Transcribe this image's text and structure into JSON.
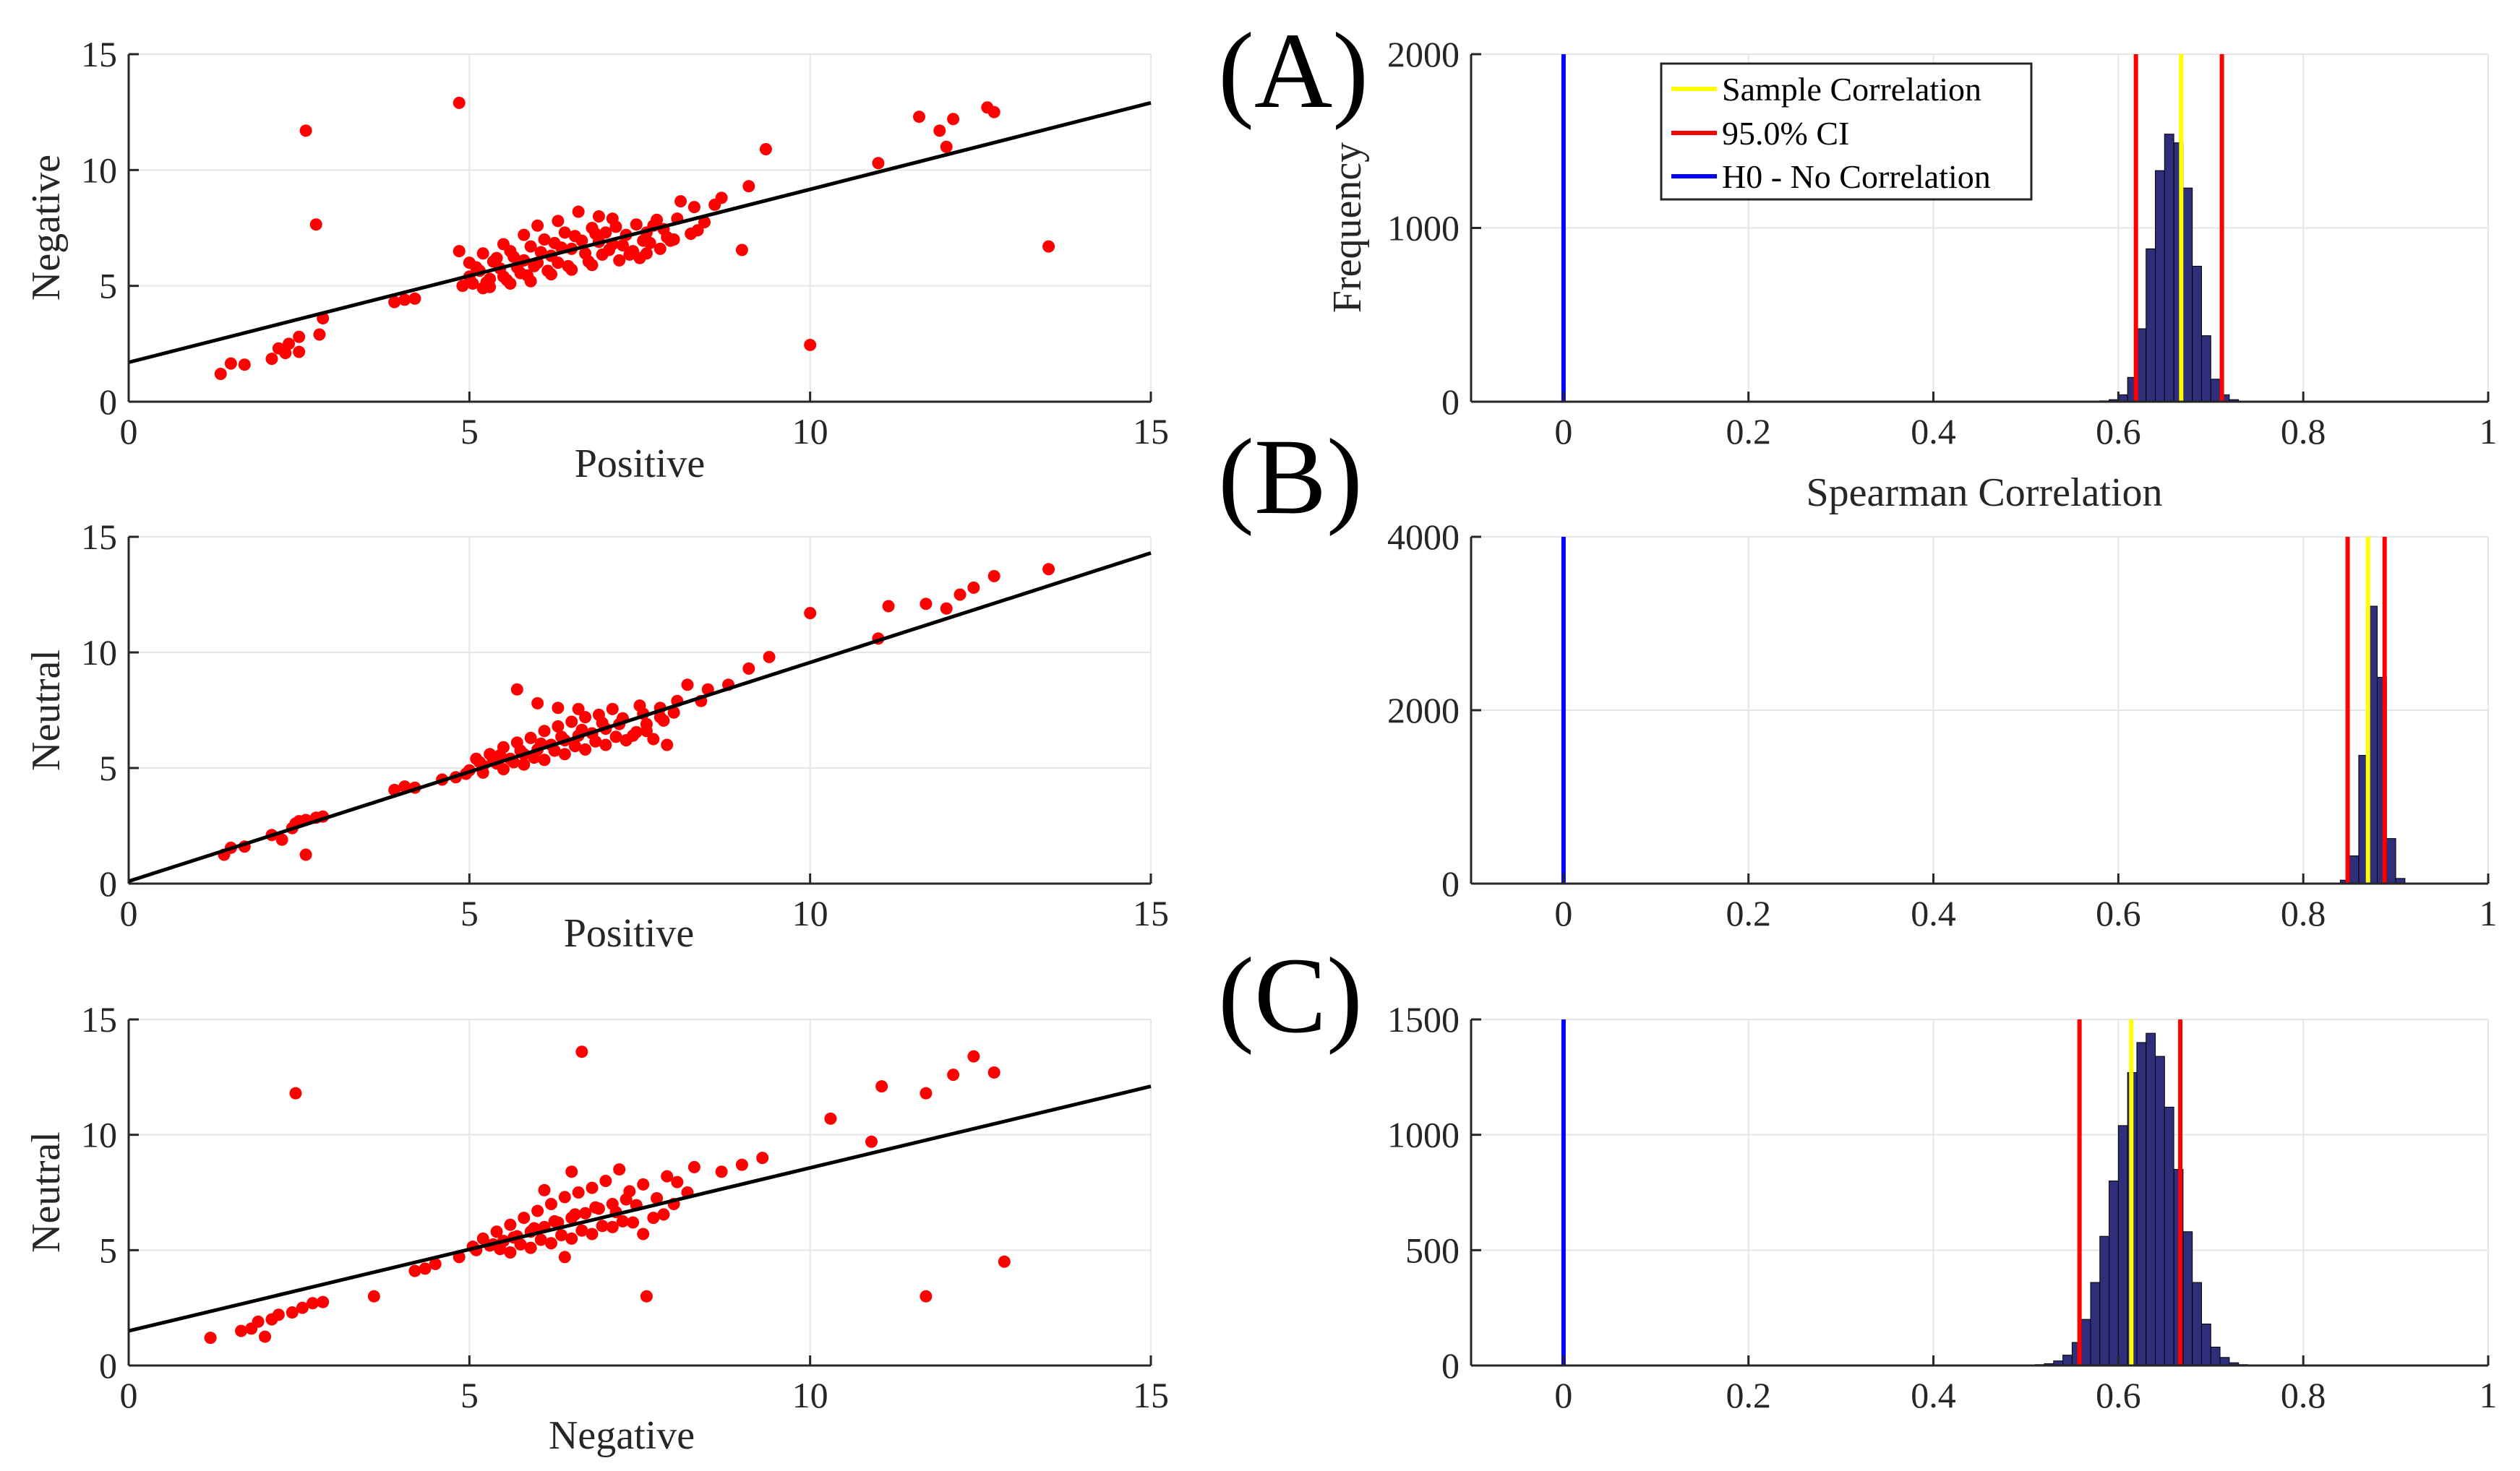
{
  "chart_data": [
    {
      "id": "scatter1",
      "type": "scatter",
      "xlabel": "Positive",
      "ylabel": "Negative",
      "xlim": [
        0,
        15
      ],
      "ylim": [
        0,
        15
      ],
      "xticks": [
        "0",
        "5",
        "10",
        "15"
      ],
      "yticks": [
        "0",
        "5",
        "10",
        "15"
      ],
      "fit_line": [
        [
          0,
          1.7
        ],
        [
          15,
          12.9
        ]
      ],
      "marker_color": "#ff0000",
      "points": [
        [
          1.35,
          1.2
        ],
        [
          1.5,
          1.65
        ],
        [
          1.7,
          1.6
        ],
        [
          2.1,
          1.85
        ],
        [
          2.2,
          2.3
        ],
        [
          2.35,
          2.5
        ],
        [
          2.5,
          2.8
        ],
        [
          2.3,
          2.1
        ],
        [
          2.5,
          2.15
        ],
        [
          2.8,
          2.9
        ],
        [
          2.85,
          3.6
        ],
        [
          2.6,
          11.7
        ],
        [
          2.75,
          7.65
        ],
        [
          3.9,
          4.3
        ],
        [
          4.05,
          4.4
        ],
        [
          4.2,
          4.45
        ],
        [
          4.85,
          12.9
        ],
        [
          10.0,
          2.45
        ],
        [
          13.5,
          6.7
        ],
        [
          9.35,
          10.9
        ],
        [
          11.0,
          10.3
        ],
        [
          11.6,
          12.3
        ],
        [
          11.9,
          11.7
        ],
        [
          12.1,
          12.2
        ],
        [
          12.6,
          12.7
        ],
        [
          12.7,
          12.5
        ],
        [
          12.0,
          11.0
        ],
        [
          9.0,
          6.55
        ],
        [
          8.6,
          8.5
        ],
        [
          8.3,
          8.4
        ],
        [
          8.1,
          8.65
        ],
        [
          8.7,
          8.8
        ],
        [
          9.1,
          9.3
        ],
        [
          8.0,
          7.0
        ],
        [
          8.35,
          7.4
        ],
        [
          7.8,
          6.6
        ],
        [
          7.6,
          6.4
        ],
        [
          7.5,
          6.2
        ],
        [
          7.1,
          7.9
        ],
        [
          6.6,
          8.2
        ],
        [
          6.9,
          8.0
        ],
        [
          7.7,
          7.6
        ],
        [
          4.9,
          5.0
        ],
        [
          4.85,
          6.5
        ],
        [
          5.0,
          5.4
        ],
        [
          5.2,
          4.9
        ],
        [
          5.3,
          5.3
        ],
        [
          5.5,
          5.4
        ],
        [
          5.7,
          5.8
        ],
        [
          5.8,
          6.1
        ],
        [
          6.0,
          6.0
        ],
        [
          6.2,
          6.3
        ],
        [
          6.3,
          6.0
        ],
        [
          6.5,
          6.6
        ],
        [
          6.7,
          6.4
        ],
        [
          6.9,
          6.9
        ],
        [
          7.1,
          6.8
        ],
        [
          7.3,
          7.2
        ],
        [
          5.1,
          5.8
        ],
        [
          5.4,
          6.2
        ],
        [
          5.6,
          6.5
        ],
        [
          5.9,
          6.7
        ],
        [
          6.1,
          7.0
        ],
        [
          6.4,
          7.3
        ],
        [
          6.8,
          7.5
        ],
        [
          7.0,
          7.3
        ],
        [
          5.3,
          4.95
        ],
        [
          5.6,
          5.1
        ],
        [
          5.9,
          5.2
        ],
        [
          6.2,
          5.5
        ],
        [
          6.5,
          5.7
        ],
        [
          6.8,
          5.9
        ],
        [
          7.2,
          6.1
        ],
        [
          7.4,
          6.5
        ],
        [
          5.0,
          6.0
        ],
        [
          5.2,
          6.4
        ],
        [
          5.5,
          6.8
        ],
        [
          5.8,
          7.2
        ],
        [
          6.0,
          7.6
        ],
        [
          6.3,
          7.8
        ],
        [
          7.6,
          7.3
        ],
        [
          7.9,
          7.1
        ],
        [
          8.05,
          7.9
        ],
        [
          5.05,
          5.1
        ],
        [
          5.45,
          5.75
        ],
        [
          5.75,
          5.55
        ],
        [
          6.05,
          6.45
        ],
        [
          6.35,
          6.65
        ],
        [
          6.65,
          6.95
        ],
        [
          6.95,
          6.35
        ],
        [
          7.25,
          6.75
        ],
        [
          7.55,
          6.95
        ],
        [
          7.85,
          7.45
        ],
        [
          5.15,
          5.65
        ],
        [
          5.35,
          6.05
        ],
        [
          5.65,
          6.25
        ],
        [
          5.95,
          5.85
        ],
        [
          6.25,
          6.85
        ],
        [
          6.55,
          7.15
        ],
        [
          6.85,
          7.25
        ],
        [
          7.15,
          7.55
        ],
        [
          7.45,
          7.65
        ],
        [
          7.75,
          7.85
        ],
        [
          5.25,
          5.15
        ],
        [
          5.55,
          5.25
        ],
        [
          5.85,
          5.45
        ],
        [
          6.15,
          5.65
        ],
        [
          6.45,
          5.85
        ],
        [
          6.75,
          6.05
        ],
        [
          7.05,
          6.55
        ],
        [
          7.35,
          6.35
        ],
        [
          7.65,
          6.85
        ],
        [
          7.95,
          6.95
        ],
        [
          8.25,
          7.25
        ],
        [
          8.45,
          7.75
        ]
      ]
    },
    {
      "id": "scatter2",
      "type": "scatter",
      "xlabel": "Positive",
      "ylabel": "Neutral",
      "xlim": [
        0,
        15
      ],
      "ylim": [
        0,
        15
      ],
      "xticks": [
        "0",
        "5",
        "10",
        "15"
      ],
      "yticks": [
        "0",
        "5",
        "10",
        "15"
      ],
      "fit_line": [
        [
          0,
          0.1
        ],
        [
          15,
          14.3
        ]
      ],
      "marker_color": "#ff0000",
      "points": [
        [
          1.4,
          1.25
        ],
        [
          1.5,
          1.55
        ],
        [
          1.7,
          1.6
        ],
        [
          2.1,
          2.1
        ],
        [
          2.25,
          1.9
        ],
        [
          2.4,
          2.4
        ],
        [
          2.45,
          2.6
        ],
        [
          2.5,
          2.7
        ],
        [
          2.6,
          2.75
        ],
        [
          2.75,
          2.85
        ],
        [
          2.85,
          2.9
        ],
        [
          2.6,
          1.25
        ],
        [
          3.9,
          4.05
        ],
        [
          4.05,
          4.2
        ],
        [
          4.2,
          4.15
        ],
        [
          4.6,
          4.5
        ],
        [
          5.7,
          8.4
        ],
        [
          10.0,
          11.7
        ],
        [
          11.0,
          10.6
        ],
        [
          11.15,
          12.0
        ],
        [
          11.7,
          12.1
        ],
        [
          12.0,
          11.9
        ],
        [
          12.2,
          12.5
        ],
        [
          12.4,
          12.8
        ],
        [
          12.7,
          13.3
        ],
        [
          13.5,
          13.6
        ],
        [
          9.1,
          9.3
        ],
        [
          8.8,
          8.6
        ],
        [
          9.4,
          9.8
        ],
        [
          8.5,
          8.4
        ],
        [
          8.2,
          8.6
        ],
        [
          8.0,
          7.4
        ],
        [
          7.8,
          7.2
        ],
        [
          7.6,
          6.6
        ],
        [
          7.4,
          6.4
        ],
        [
          7.9,
          6.0
        ],
        [
          4.8,
          4.6
        ],
        [
          5.0,
          4.9
        ],
        [
          5.2,
          5.1
        ],
        [
          5.4,
          5.2
        ],
        [
          5.6,
          5.4
        ],
        [
          5.8,
          5.6
        ],
        [
          6.0,
          5.8
        ],
        [
          6.2,
          6.0
        ],
        [
          6.4,
          6.2
        ],
        [
          6.6,
          6.4
        ],
        [
          6.8,
          6.5
        ],
        [
          7.0,
          6.7
        ],
        [
          7.2,
          6.9
        ],
        [
          5.1,
          5.4
        ],
        [
          5.3,
          5.6
        ],
        [
          5.5,
          5.9
        ],
        [
          5.7,
          6.1
        ],
        [
          5.9,
          6.3
        ],
        [
          6.1,
          6.6
        ],
        [
          6.3,
          6.8
        ],
        [
          6.5,
          7.0
        ],
        [
          6.7,
          7.2
        ],
        [
          6.9,
          7.3
        ],
        [
          5.2,
          4.8
        ],
        [
          5.5,
          4.95
        ],
        [
          5.8,
          5.15
        ],
        [
          6.1,
          5.35
        ],
        [
          6.4,
          5.6
        ],
        [
          6.7,
          5.8
        ],
        [
          7.0,
          6.0
        ],
        [
          7.3,
          6.2
        ],
        [
          7.6,
          6.9
        ],
        [
          7.8,
          7.6
        ],
        [
          8.05,
          7.9
        ],
        [
          6.0,
          7.8
        ],
        [
          6.3,
          7.6
        ],
        [
          7.1,
          7.55
        ],
        [
          5.15,
          5.25
        ],
        [
          5.45,
          5.55
        ],
        [
          5.75,
          5.75
        ],
        [
          6.05,
          6.05
        ],
        [
          6.35,
          6.35
        ],
        [
          6.65,
          6.65
        ],
        [
          6.95,
          6.95
        ],
        [
          7.25,
          7.15
        ],
        [
          7.55,
          7.35
        ],
        [
          7.85,
          7.05
        ],
        [
          5.35,
          5.35
        ],
        [
          5.65,
          5.25
        ],
        [
          5.95,
          5.45
        ],
        [
          6.25,
          5.75
        ],
        [
          6.55,
          5.95
        ],
        [
          6.85,
          6.15
        ],
        [
          7.15,
          6.35
        ],
        [
          7.45,
          6.55
        ],
        [
          4.95,
          4.75
        ],
        [
          8.4,
          7.9
        ],
        [
          7.7,
          6.25
        ],
        [
          7.5,
          7.7
        ],
        [
          6.6,
          7.55
        ]
      ]
    },
    {
      "id": "scatter3",
      "type": "scatter",
      "xlabel": "Negative",
      "ylabel": "Neutral",
      "xlim": [
        0,
        15
      ],
      "ylim": [
        0,
        15
      ],
      "xticks": [
        "0",
        "5",
        "10",
        "15"
      ],
      "yticks": [
        "0",
        "5",
        "10",
        "15"
      ],
      "fit_line": [
        [
          0,
          1.5
        ],
        [
          15,
          12.1
        ]
      ],
      "marker_color": "#ff0000",
      "points": [
        [
          1.2,
          1.2
        ],
        [
          1.65,
          1.5
        ],
        [
          1.8,
          1.6
        ],
        [
          1.9,
          1.9
        ],
        [
          2.0,
          1.25
        ],
        [
          2.1,
          2.0
        ],
        [
          2.2,
          2.2
        ],
        [
          2.4,
          2.3
        ],
        [
          2.55,
          2.5
        ],
        [
          2.7,
          2.7
        ],
        [
          2.85,
          2.75
        ],
        [
          2.45,
          11.8
        ],
        [
          3.6,
          3.0
        ],
        [
          4.2,
          4.1
        ],
        [
          4.35,
          4.2
        ],
        [
          4.5,
          4.4
        ],
        [
          6.65,
          13.6
        ],
        [
          7.6,
          3.0
        ],
        [
          11.7,
          3.0
        ],
        [
          12.85,
          4.5
        ],
        [
          10.3,
          10.7
        ],
        [
          10.9,
          9.7
        ],
        [
          11.05,
          12.1
        ],
        [
          11.7,
          11.8
        ],
        [
          12.1,
          12.6
        ],
        [
          12.4,
          13.4
        ],
        [
          12.7,
          12.7
        ],
        [
          9.3,
          9.0
        ],
        [
          9.0,
          8.7
        ],
        [
          8.7,
          8.4
        ],
        [
          8.3,
          8.6
        ],
        [
          7.9,
          8.2
        ],
        [
          7.55,
          5.7
        ],
        [
          4.85,
          4.7
        ],
        [
          5.1,
          5.0
        ],
        [
          5.3,
          5.2
        ],
        [
          5.5,
          5.4
        ],
        [
          5.7,
          5.6
        ],
        [
          5.9,
          5.8
        ],
        [
          6.1,
          6.0
        ],
        [
          6.3,
          6.2
        ],
        [
          6.5,
          6.4
        ],
        [
          6.7,
          6.6
        ],
        [
          6.9,
          6.8
        ],
        [
          7.1,
          7.0
        ],
        [
          7.3,
          7.2
        ],
        [
          5.2,
          5.5
        ],
        [
          5.4,
          5.8
        ],
        [
          5.6,
          6.1
        ],
        [
          5.8,
          6.4
        ],
        [
          6.0,
          6.7
        ],
        [
          6.2,
          7.0
        ],
        [
          6.4,
          7.3
        ],
        [
          6.6,
          7.5
        ],
        [
          6.8,
          7.7
        ],
        [
          7.0,
          8.0
        ],
        [
          5.6,
          4.9
        ],
        [
          5.9,
          5.1
        ],
        [
          6.2,
          5.3
        ],
        [
          6.5,
          5.5
        ],
        [
          6.8,
          5.7
        ],
        [
          7.1,
          6.0
        ],
        [
          7.4,
          6.2
        ],
        [
          7.7,
          6.4
        ],
        [
          8.0,
          7.0
        ],
        [
          8.2,
          7.5
        ],
        [
          6.5,
          8.4
        ],
        [
          7.2,
          8.5
        ],
        [
          6.1,
          7.6
        ],
        [
          5.35,
          5.25
        ],
        [
          5.65,
          5.55
        ],
        [
          5.95,
          5.95
        ],
        [
          6.25,
          6.25
        ],
        [
          6.55,
          6.55
        ],
        [
          6.85,
          6.85
        ],
        [
          7.15,
          6.65
        ],
        [
          7.45,
          6.95
        ],
        [
          7.75,
          7.25
        ],
        [
          7.35,
          7.55
        ],
        [
          7.55,
          7.85
        ],
        [
          5.45,
          5.05
        ],
        [
          5.75,
          5.25
        ],
        [
          6.05,
          5.45
        ],
        [
          6.35,
          5.65
        ],
        [
          6.65,
          5.85
        ],
        [
          6.95,
          6.05
        ],
        [
          7.25,
          6.25
        ],
        [
          7.85,
          6.55
        ],
        [
          6.4,
          4.7
        ],
        [
          5.05,
          5.15
        ],
        [
          8.05,
          7.95
        ]
      ]
    },
    {
      "id": "hist_A",
      "type": "histogram",
      "panel": "(A)",
      "xlabel": "Spearman Correlation",
      "ylabel": "Frequency",
      "xlim": [
        -0.1,
        1.0
      ],
      "ylim": [
        0,
        2000
      ],
      "xticks": [
        "0",
        "0.2",
        "0.4",
        "0.6",
        "0.8",
        "1"
      ],
      "yticks": [
        "0",
        "1000",
        "2000"
      ],
      "bin_start": 0.57,
      "bin_width": 0.01,
      "counts": [
        3,
        5,
        12,
        40,
        140,
        420,
        880,
        1330,
        1540,
        1490,
        1230,
        780,
        380,
        130,
        40,
        12,
        4
      ],
      "bar_color": "#2e2e7a",
      "sample_correlation": 0.668,
      "ci_lower": 0.619,
      "ci_upper": 0.712,
      "h0_value": 0,
      "legend": {
        "sample": "Sample Correlation",
        "ci": "95.0% CI",
        "h0": "H0 - No Correlation"
      },
      "colors": {
        "sample": "#ffff00",
        "ci": "#ff0000",
        "h0": "#0000ff"
      }
    },
    {
      "id": "hist_B",
      "type": "histogram",
      "panel": "(B)",
      "xlabel": "",
      "ylabel": "",
      "xlim": [
        -0.1,
        1.0
      ],
      "ylim": [
        0,
        4000
      ],
      "xticks": [
        "0",
        "0.2",
        "0.4",
        "0.6",
        "0.8",
        "1"
      ],
      "yticks": [
        "0",
        "2000",
        "4000"
      ],
      "bin_start": 0.83,
      "bin_width": 0.01,
      "counts": [
        5,
        40,
        320,
        1480,
        3200,
        2380,
        520,
        60,
        8
      ],
      "bar_color": "#2e2e7a",
      "sample_correlation": 0.87,
      "ci_lower": 0.848,
      "ci_upper": 0.888,
      "h0_value": 0
    },
    {
      "id": "hist_C",
      "type": "histogram",
      "panel": "(C)",
      "xlabel": "",
      "ylabel": "",
      "xlim": [
        -0.1,
        1.0
      ],
      "ylim": [
        0,
        1500
      ],
      "xticks": [
        "0",
        "0.2",
        "0.4",
        "0.6",
        "0.8",
        "1"
      ],
      "yticks": [
        "0",
        "500",
        "1000",
        "1500"
      ],
      "bin_start": 0.5,
      "bin_width": 0.01,
      "counts": [
        2,
        4,
        8,
        20,
        45,
        100,
        200,
        360,
        560,
        800,
        1040,
        1270,
        1400,
        1440,
        1340,
        1120,
        850,
        580,
        360,
        180,
        80,
        35,
        12,
        4
      ],
      "bar_color": "#2e2e7a",
      "sample_correlation": 0.614,
      "ci_lower": 0.558,
      "ci_upper": 0.667,
      "h0_value": 0
    }
  ],
  "panel_letters": [
    "(A)",
    "(B)",
    "(C)"
  ]
}
